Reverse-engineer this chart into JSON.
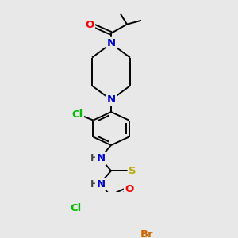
{
  "background_color": "#e8e8e8",
  "bond_color": "#000000",
  "bond_width": 1.4,
  "atom_colors": {
    "O": "#ff0000",
    "N": "#0000cc",
    "S": "#bbaa00",
    "Cl": "#00bb00",
    "Br": "#cc6600",
    "C": "#000000",
    "H": "#444444"
  },
  "font_size": 9.5,
  "fig_width": 3.0,
  "fig_height": 3.0,
  "dpi": 100
}
